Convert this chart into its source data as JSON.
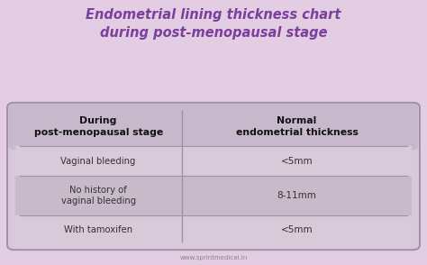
{
  "title_line1": "Endometrial lining thickness chart",
  "title_line2": "during post-menopausal stage",
  "title_color": "#7B3F9E",
  "bg_color": "#E2CDE2",
  "table_bg": "#D8C8DA",
  "header_bg": "#C8B8CC",
  "row1_bg": "#D8CAD8",
  "row2_bg": "#C8BAC8",
  "row3_bg": "#D8CAD8",
  "col1_header": "During\npost-menopausal stage",
  "col2_header": "Normal\nendometrial thickness",
  "rows": [
    [
      "Vaginal bleeding",
      "<5mm"
    ],
    [
      "No history of\nvaginal bleeding",
      "8-11mm"
    ],
    [
      "With tamoxifen",
      "<5mm"
    ]
  ],
  "footer": "www.sprintmedical.in",
  "header_text_color": "#111111",
  "row_text_color": "#333333",
  "divider_color": "#A090AA",
  "footer_color": "#888888"
}
